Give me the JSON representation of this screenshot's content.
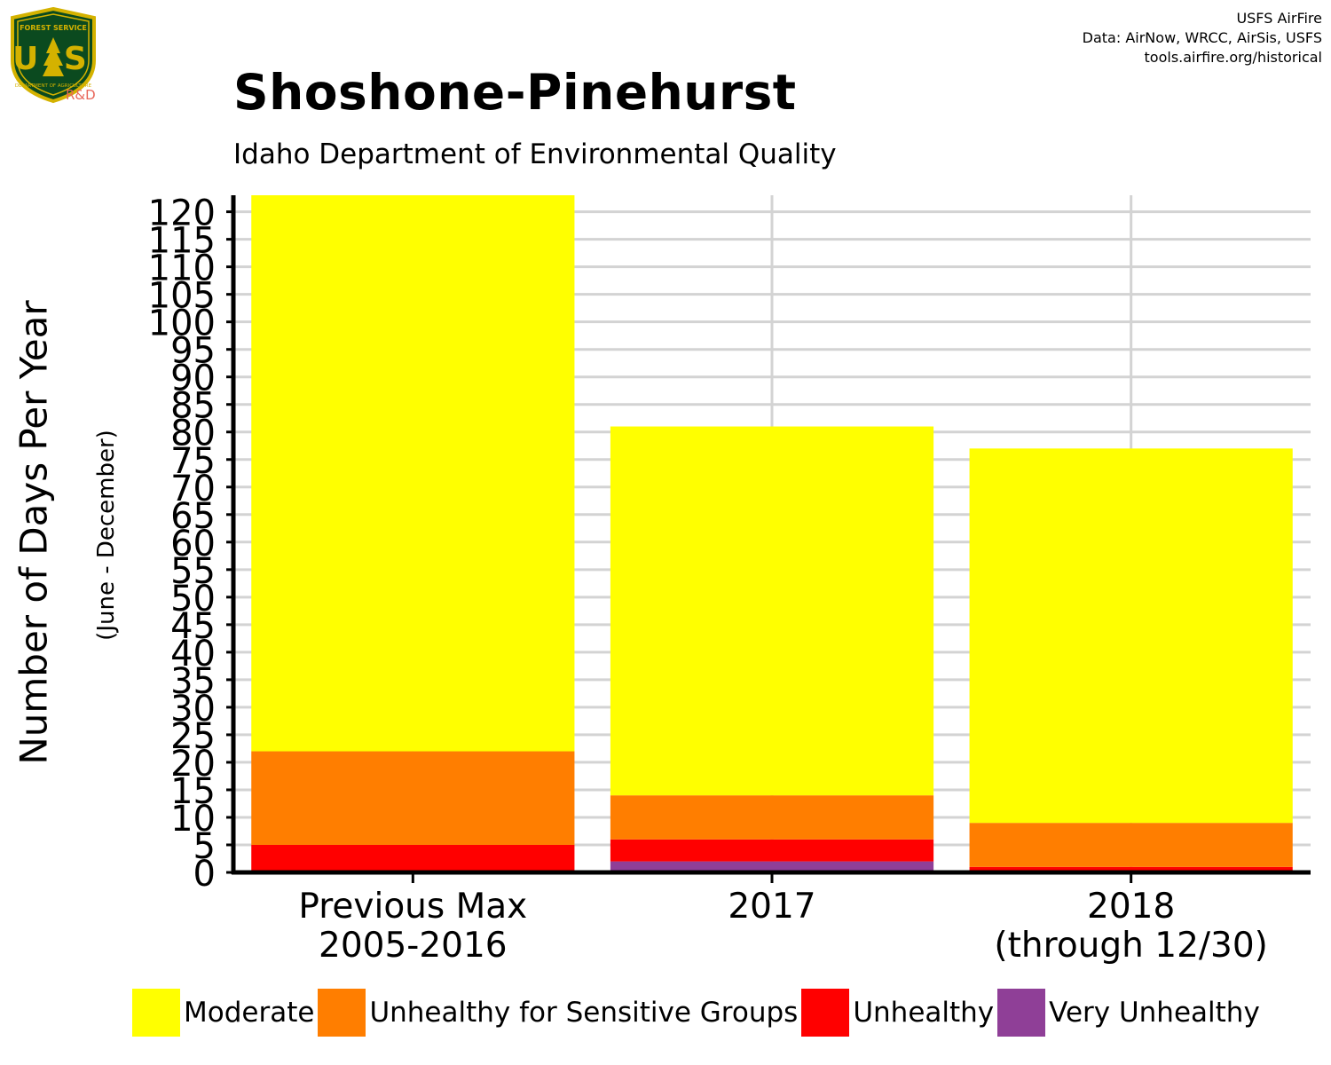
{
  "credit": {
    "line1": "USFS AirFire",
    "line2": "Data: AirNow, WRCC, AirSis, USFS",
    "line3": "tools.airfire.org/historical"
  },
  "logo": {
    "top_text": "FOREST SERVICE",
    "letters": "U S",
    "bottom_text": "DEPARTMENT OF AGRICULTURE",
    "badge": "R&D",
    "colors": {
      "shield": "#0b4a1f",
      "border": "#d4b200",
      "badge": "#e8665a"
    }
  },
  "chart_data": {
    "type": "bar",
    "stacked": true,
    "title": "Shoshone-Pinehurst",
    "subtitle": "Idaho Department of Environmental Quality",
    "ylabel": "Number of Days Per Year",
    "ylabel_note": "(June - December)",
    "xlabel": "",
    "categories": [
      [
        "Previous Max",
        "2005-2016"
      ],
      [
        "2017"
      ],
      [
        "2018",
        "(through 12/30)"
      ]
    ],
    "series": [
      {
        "name": "Moderate",
        "color": "#ffff00",
        "values": [
          101,
          67,
          68
        ]
      },
      {
        "name": "Unhealthy for Sensitive Groups",
        "color": "#ff7e00",
        "values": [
          17,
          8,
          8
        ]
      },
      {
        "name": "Unhealthy",
        "color": "#ff0000",
        "values": [
          5,
          4,
          1
        ]
      },
      {
        "name": "Very Unhealthy",
        "color": "#8f3f97",
        "values": [
          0,
          2,
          0
        ]
      }
    ],
    "totals": [
      123,
      81,
      77
    ],
    "ylim": [
      0,
      123
    ],
    "yticks": [
      0,
      5,
      10,
      15,
      20,
      25,
      30,
      35,
      40,
      45,
      50,
      55,
      60,
      65,
      70,
      75,
      80,
      85,
      90,
      95,
      100,
      105,
      110,
      115,
      120
    ],
    "grid": true,
    "legend_position": "bottom"
  }
}
